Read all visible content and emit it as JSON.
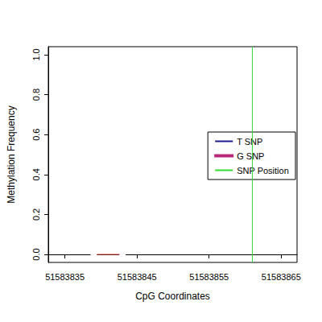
{
  "chart_data": {
    "type": "line",
    "x_label": "CpG Coordinates",
    "y_label": "Methylation Frequency",
    "xlim": [
      51583832.7,
      51583867.2
    ],
    "xticks": [
      51583835,
      51583845,
      51583855,
      51583865
    ],
    "ylim": [
      -0.04,
      1.04
    ],
    "yticks": [
      {
        "value": 0,
        "label": "0.0"
      },
      {
        "value": 0.2,
        "label": "0.2"
      },
      {
        "value": 0.4,
        "label": "0.4"
      },
      {
        "value": 0.6,
        "label": "0.6"
      },
      {
        "value": 0.8,
        "label": "0.8"
      },
      {
        "value": 1,
        "label": "1.0"
      }
    ],
    "grid": false,
    "legend": "right",
    "series": [
      {
        "name": "T SNP",
        "color": "#1a1a8c",
        "x": [],
        "values": []
      },
      {
        "name": "G SNP",
        "color": "#d43030",
        "marker": "open_circle",
        "x": [
          51583839,
          51583843
        ],
        "values": [
          0,
          0
        ]
      },
      {
        "name": "SNP Position",
        "color": "#33dd33",
        "type": "vline",
        "x": [
          51583861
        ]
      }
    ]
  }
}
